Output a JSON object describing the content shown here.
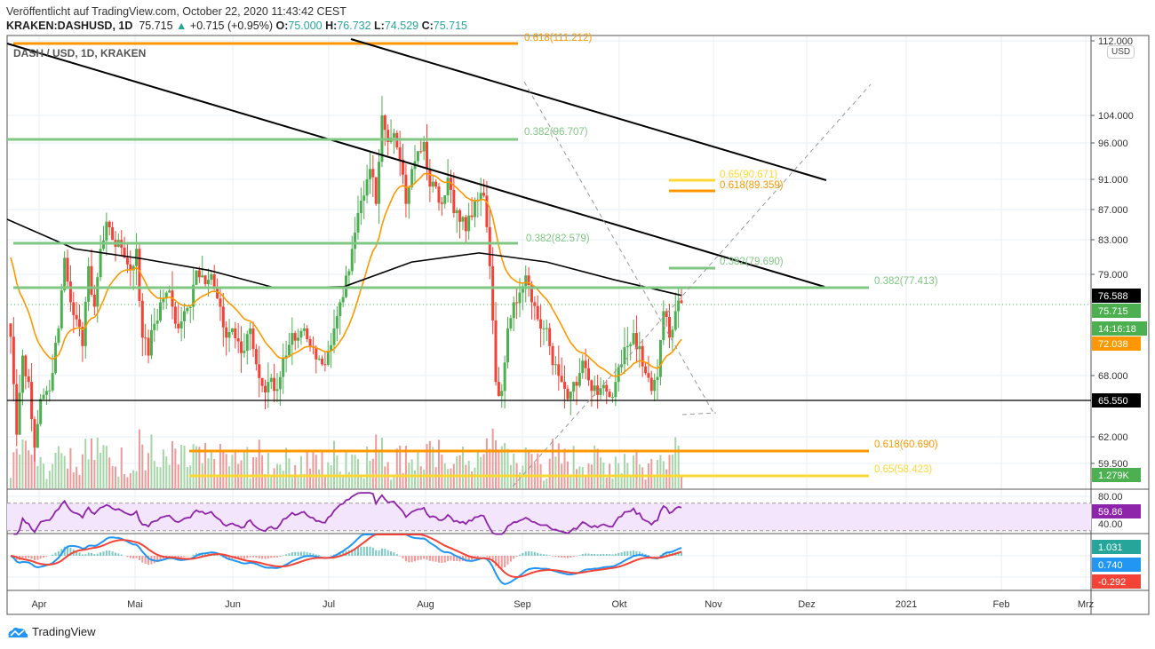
{
  "header": {
    "published": "Veröffentlicht auf TradingView.com, October 22, 2020 11:43:42 CEST",
    "symbol": "KRAKEN:DASHUSD, 1D",
    "last": "75.715",
    "change": "+0.715 (+0.95%)",
    "o_label": "O:",
    "o": "75.000",
    "h_label": "H:",
    "h": "76.732",
    "l_label": "L:",
    "l": "74.529",
    "c_label": "C:",
    "c": "75.715"
  },
  "pane_title": "DASH / USD, 1D, KRAKEN",
  "currency": "USD",
  "brand": "TradingView",
  "colors": {
    "up": "#4caf50",
    "down": "#f44336",
    "ema": "#ff9800",
    "ma": "#000000",
    "rsi": "#8e24aa",
    "macd": "#2196f3",
    "signal": "#f44336"
  },
  "price_ticks": [
    "112.000",
    "104.000",
    "96.000",
    "91.000",
    "87.000",
    "83.000",
    "79.000",
    "68.000",
    "62.000",
    "59.500"
  ],
  "price_labels": [
    {
      "text": "76.588",
      "color": "#000000"
    },
    {
      "text": "75.715",
      "color": "#4caf50"
    },
    {
      "text": "14:16:18",
      "color": "#4caf50"
    },
    {
      "text": "72.038",
      "color": "#ff9800"
    },
    {
      "text": "65.550",
      "color": "#000000"
    },
    {
      "text": "1.279K",
      "color": "#4caf50"
    }
  ],
  "rsi": {
    "ticks": [
      "80.00",
      "40.00"
    ],
    "value": "59.86"
  },
  "macd": {
    "values": [
      {
        "text": "1.031",
        "color": "#26a69a"
      },
      {
        "text": "0.740",
        "color": "#2196f3"
      },
      {
        "text": "-0.292",
        "color": "#f44336"
      }
    ]
  },
  "time_ticks": [
    "Apr",
    "Mai",
    "Jun",
    "Jul",
    "Aug",
    "Sep",
    "Okt",
    "Nov",
    "Dez",
    "2021",
    "Feb",
    "Mrz"
  ],
  "fib_labels": [
    {
      "text": "0.618(111.212)",
      "color": "#ff9800"
    },
    {
      "text": "0.382(96.707)",
      "color": "#81c784"
    },
    {
      "text": "0.382(82.579)",
      "color": "#81c784"
    },
    {
      "text": "0.65(90.671)",
      "color": "#fdd835"
    },
    {
      "text": "0.618(89.359)",
      "color": "#ff9800"
    },
    {
      "text": "0.382(79.690)",
      "color": "#81c784"
    },
    {
      "text": "0.382(77.413)",
      "color": "#81c784"
    },
    {
      "text": "0.618(60.690)",
      "color": "#ff9800"
    },
    {
      "text": "0.65(58.423)",
      "color": "#fdd835"
    }
  ],
  "chart_data": {
    "type": "candlestick",
    "symbol": "DASHUSD",
    "interval": "1D",
    "start": "2020-03-23",
    "end": "2020-10-22",
    "closes": [
      72.0,
      62.2,
      70.0,
      67.3,
      61.0,
      65.6,
      66.4,
      68.2,
      72.9,
      81.0,
      75.8,
      73.9,
      71.0,
      80.0,
      75.3,
      82.1,
      85.5,
      83.2,
      83.2,
      81.0,
      79.5,
      82.1,
      71.9,
      70.0,
      73.4,
      75.8,
      76.9,
      75.3,
      72.9,
      74.8,
      75.3,
      79.5,
      78.9,
      78.4,
      77.4,
      75.3,
      71.9,
      72.9,
      71.5,
      70.5,
      72.9,
      69.1,
      66.9,
      67.3,
      66.4,
      67.8,
      70.0,
      72.4,
      71.9,
      72.9,
      71.0,
      69.6,
      69.1,
      70.5,
      72.9,
      75.8,
      78.9,
      82.1,
      86.6,
      88.9,
      92.5,
      87.8,
      100.2,
      96.3,
      97.6,
      93.8,
      87.8,
      92.5,
      95.0,
      96.3,
      90.1,
      90.1,
      87.8,
      91.3,
      86.6,
      85.5,
      84.3,
      86.1,
      88.3,
      88.9,
      80.0,
      67.3,
      66.4,
      72.9,
      75.8,
      76.9,
      78.9,
      75.8,
      73.9,
      72.9,
      71.0,
      69.1,
      67.3,
      65.6,
      67.3,
      68.2,
      68.7,
      66.4,
      66.0,
      67.0,
      65.8,
      67.3,
      69.1,
      71.0,
      72.4,
      71.0,
      68.2,
      66.4,
      67.8,
      74.8,
      71.9,
      74.8,
      75.715
    ],
    "ma_long": [
      85.8,
      82.1,
      80.9,
      79.5,
      77.4,
      77.6,
      80.5,
      81.6,
      80.5,
      78.4,
      76.588
    ],
    "ema_seed": 82.0
  }
}
